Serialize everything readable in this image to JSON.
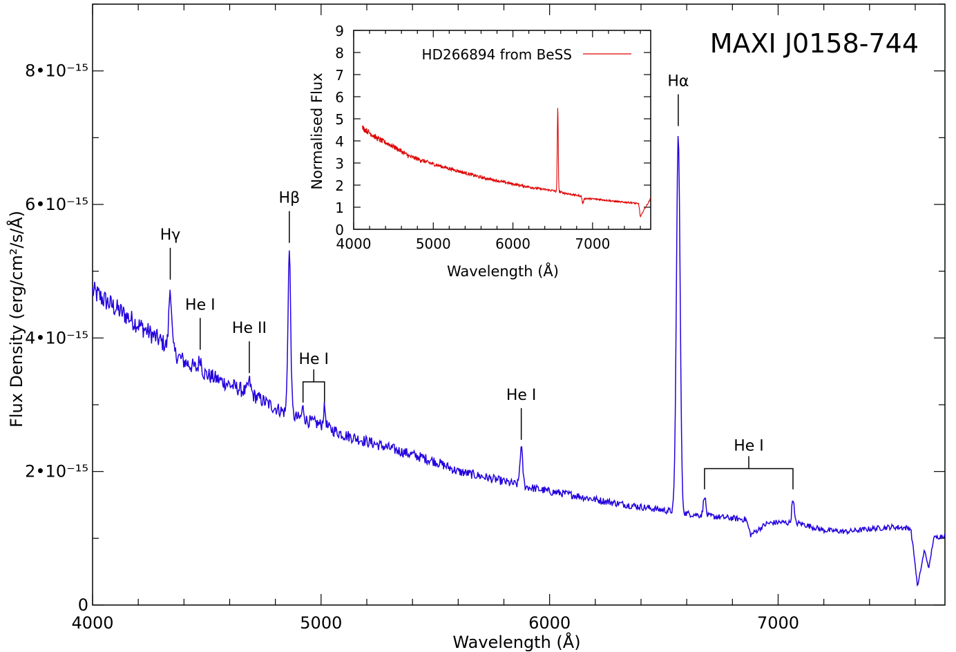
{
  "chart_data": [
    {
      "type": "line",
      "title": "MAXI J0158-744",
      "xlabel": "Wavelength (Å)",
      "ylabel": "Flux Density (erg/cm²/s/Å)",
      "xlim": [
        4000,
        7730
      ],
      "ylim": [
        0,
        9e-15
      ],
      "x_ticks": [
        4000,
        5000,
        6000,
        7000
      ],
      "x_tick_labels": [
        "4000",
        "5000",
        "6000",
        "7000"
      ],
      "y_ticks": [
        0,
        2e-15,
        4e-15,
        6e-15,
        8e-15
      ],
      "y_tick_labels": [
        "0",
        "2•10⁻¹⁵",
        "4•10⁻¹⁵",
        "6•10⁻¹⁵",
        "8•10⁻¹⁵"
      ],
      "color": "#2200dd",
      "series": [
        {
          "continuum": [
            [
              4000,
              4.7e-15
            ],
            [
              4100,
              4.45e-15
            ],
            [
              4200,
              4.2e-15
            ],
            [
              4300,
              3.95e-15
            ],
            [
              4400,
              3.65e-15
            ],
            [
              4500,
              3.45e-15
            ],
            [
              4600,
              3.3e-15
            ],
            [
              4700,
              3.15e-15
            ],
            [
              4800,
              2.95e-15
            ],
            [
              4900,
              2.8e-15
            ],
            [
              5000,
              2.7e-15
            ],
            [
              5100,
              2.55e-15
            ],
            [
              5200,
              2.45e-15
            ],
            [
              5300,
              2.35e-15
            ],
            [
              5400,
              2.25e-15
            ],
            [
              5500,
              2.15e-15
            ],
            [
              5600,
              2e-15
            ],
            [
              5700,
              1.93e-15
            ],
            [
              5800,
              1.85e-15
            ],
            [
              5900,
              1.77e-15
            ],
            [
              6000,
              1.7e-15
            ],
            [
              6100,
              1.65e-15
            ],
            [
              6200,
              1.58e-15
            ],
            [
              6300,
              1.52e-15
            ],
            [
              6400,
              1.47e-15
            ],
            [
              6500,
              1.42e-15
            ],
            [
              6600,
              1.37e-15
            ],
            [
              6700,
              1.33e-15
            ],
            [
              6800,
              1.3e-15
            ],
            [
              6860,
              1.28e-15
            ],
            [
              6880,
              1.05e-15
            ],
            [
              6950,
              1.22e-15
            ],
            [
              7000,
              1.24e-15
            ],
            [
              7100,
              1.22e-15
            ],
            [
              7200,
              1.12e-15
            ],
            [
              7300,
              1.1e-15
            ],
            [
              7400,
              1.14e-15
            ],
            [
              7500,
              1.17e-15
            ],
            [
              7580,
              1.15e-15
            ],
            [
              7595,
              7.5e-16
            ],
            [
              7610,
              2.7e-16
            ],
            [
              7640,
              8.2e-16
            ],
            [
              7660,
              5.5e-16
            ],
            [
              7680,
              1e-15
            ],
            [
              7730,
              1.05e-15
            ]
          ],
          "emission_lines": [
            {
              "x": 4340,
              "peak": 4.75e-15,
              "width": 6
            },
            {
              "x": 4471,
              "peak": 3.7e-15,
              "width": 6
            },
            {
              "x": 4686,
              "peak": 3.35e-15,
              "width": 6
            },
            {
              "x": 4861,
              "peak": 5.3e-15,
              "width": 6
            },
            {
              "x": 4921,
              "peak": 2.95e-15,
              "width": 5
            },
            {
              "x": 5015,
              "peak": 2.95e-15,
              "width": 5
            },
            {
              "x": 5876,
              "peak": 2.35e-15,
              "width": 6
            },
            {
              "x": 6563,
              "peak": 7.05e-15,
              "width": 8
            },
            {
              "x": 6678,
              "peak": 1.65e-15,
              "width": 5
            },
            {
              "x": 7065,
              "peak": 1.6e-15,
              "width": 5
            }
          ]
        }
      ],
      "line_labels": [
        {
          "label": "Hγ",
          "x": [
            4340
          ]
        },
        {
          "label": "He I",
          "x": [
            4471
          ]
        },
        {
          "label": "He II",
          "x": [
            4686
          ]
        },
        {
          "label": "Hβ",
          "x": [
            4861
          ]
        },
        {
          "label": "He I",
          "x": [
            4921,
            5015
          ]
        },
        {
          "label": "He I",
          "x": [
            5876
          ]
        },
        {
          "label": "Hα",
          "x": [
            6563
          ]
        },
        {
          "label": "He I",
          "x": [
            6678,
            7065
          ]
        }
      ]
    },
    {
      "type": "line",
      "title": "",
      "xlabel": "Wavelength (Å)",
      "ylabel": "Normalised Flux",
      "xlim": [
        4000,
        7730
      ],
      "ylim": [
        0,
        9
      ],
      "x_ticks": [
        4000,
        5000,
        6000,
        7000
      ],
      "x_tick_labels": [
        "4000",
        "5000",
        "6000",
        "7000"
      ],
      "y_ticks": [
        0,
        1,
        2,
        3,
        4,
        5,
        6,
        7,
        8,
        9
      ],
      "y_tick_labels": [
        "0",
        "1",
        "2",
        "3",
        "4",
        "5",
        "6",
        "7",
        "8",
        "9"
      ],
      "color": "#dd0000",
      "series": [
        {
          "name": "HD266894 from BeSS",
          "continuum": [
            [
              4110,
              4.6
            ],
            [
              4300,
              4.1
            ],
            [
              4500,
              3.75
            ],
            [
              4700,
              3.3
            ],
            [
              5000,
              2.95
            ],
            [
              5300,
              2.65
            ],
            [
              5600,
              2.35
            ],
            [
              6000,
              2.05
            ],
            [
              6300,
              1.85
            ],
            [
              6500,
              1.75
            ],
            [
              6700,
              1.6
            ],
            [
              6860,
              1.5
            ],
            [
              6875,
              1.15
            ],
            [
              6900,
              1.4
            ],
            [
              7100,
              1.35
            ],
            [
              7300,
              1.25
            ],
            [
              7500,
              1.2
            ],
            [
              7580,
              1.15
            ],
            [
              7600,
              0.55
            ],
            [
              7640,
              0.85
            ],
            [
              7700,
              1.2
            ],
            [
              7730,
              1.4
            ]
          ],
          "emission_lines": [
            {
              "x": 6563,
              "peak": 5.5,
              "width": 6
            }
          ]
        }
      ]
    }
  ]
}
